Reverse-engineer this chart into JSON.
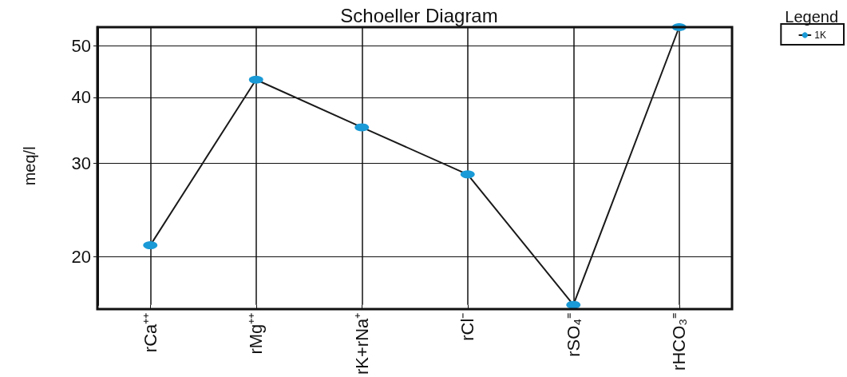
{
  "chart_data": {
    "type": "line",
    "title": "Schoeller Diagram",
    "ylabel": "meq/l",
    "legend_title": "Legend",
    "categories": [
      "rCa⁺⁺",
      "rMg⁺⁺",
      "rK+rNa⁺",
      "rCl⁻",
      "rSO₄⁼",
      "rHCO₃⁼"
    ],
    "series": [
      {
        "name": "1K",
        "color": "#1a9ad6",
        "values": [
          21.0,
          43.2,
          35.1,
          28.6,
          16.2,
          54.3
        ]
      }
    ],
    "log": "y",
    "ylim": [
      16.2,
      54.3
    ],
    "yticks": [
      20,
      30,
      40,
      50
    ],
    "grid": true,
    "legend": "top right",
    "marker": "circle",
    "line_style": "solid"
  }
}
